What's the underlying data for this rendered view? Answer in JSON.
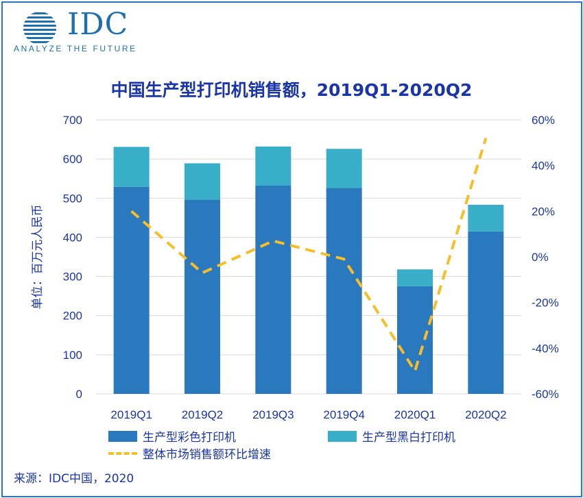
{
  "header": {
    "logo_text": "IDC",
    "tagline": "ANALYZE THE FUTURE"
  },
  "source": "来源：IDC中国，2020",
  "colors": {
    "frame": "#2a77bd",
    "title": "#1a35a8",
    "color_bar": "#2a79be",
    "mono_bar": "#38aec8",
    "growth_line": "#f7be2a"
  },
  "chart_data": {
    "type": "bar",
    "stacked": true,
    "title": "中国生产型打印机销售额，2019Q1-2020Q2",
    "ylabel": "单位：百万元人民币",
    "categories": [
      "2019Q1",
      "2019Q2",
      "2019Q3",
      "2019Q4",
      "2020Q1",
      "2020Q2"
    ],
    "ylim": [
      0,
      700
    ],
    "yticks": [
      0,
      100,
      200,
      300,
      400,
      500,
      600,
      700
    ],
    "y2lim": [
      -60,
      60
    ],
    "y2ticks": [
      "-60%",
      "-40%",
      "-20%",
      "0%",
      "20%",
      "40%",
      "60%"
    ],
    "y2tick_values": [
      -60,
      -40,
      -20,
      0,
      20,
      40,
      60
    ],
    "grid": true,
    "series": [
      {
        "name": "生产型彩色打印机",
        "type": "bar",
        "axis": "left",
        "values": [
          529,
          496,
          532,
          526,
          275,
          415
        ]
      },
      {
        "name": "生产型黑白打印机",
        "type": "bar",
        "axis": "left",
        "values": [
          102,
          93,
          100,
          100,
          43,
          68
        ]
      },
      {
        "name": "整体市场销售额环比增速",
        "type": "line",
        "style": "dashed",
        "axis": "right",
        "unit": "%",
        "values": [
          20,
          -7,
          7,
          -1,
          -50,
          52
        ]
      }
    ]
  }
}
